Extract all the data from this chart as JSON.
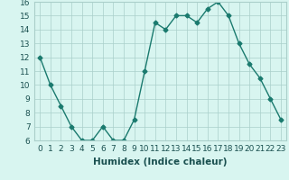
{
  "xlabel": "Humidex (Indice chaleur)",
  "x": [
    0,
    1,
    2,
    3,
    4,
    5,
    6,
    7,
    8,
    9,
    10,
    11,
    12,
    13,
    14,
    15,
    16,
    17,
    18,
    19,
    20,
    21,
    22,
    23
  ],
  "y": [
    12,
    10,
    8.5,
    7,
    6,
    6,
    7,
    6,
    6,
    7.5,
    11,
    14.5,
    14,
    15,
    15,
    14.5,
    15.5,
    16,
    15,
    13,
    11.5,
    10.5,
    9,
    7.5
  ],
  "line_color": "#1a7a6e",
  "marker": "D",
  "marker_size": 2.5,
  "bg_color": "#d8f5f0",
  "grid_color": "#aacfca",
  "ylim": [
    6,
    16
  ],
  "yticks": [
    6,
    7,
    8,
    9,
    10,
    11,
    12,
    13,
    14,
    15,
    16
  ],
  "xlim": [
    -0.5,
    23.5
  ],
  "xticks": [
    0,
    1,
    2,
    3,
    4,
    5,
    6,
    7,
    8,
    9,
    10,
    11,
    12,
    13,
    14,
    15,
    16,
    17,
    18,
    19,
    20,
    21,
    22,
    23
  ],
  "tick_fontsize": 6.5,
  "xlabel_fontsize": 7.5,
  "label_color": "#1a5050"
}
